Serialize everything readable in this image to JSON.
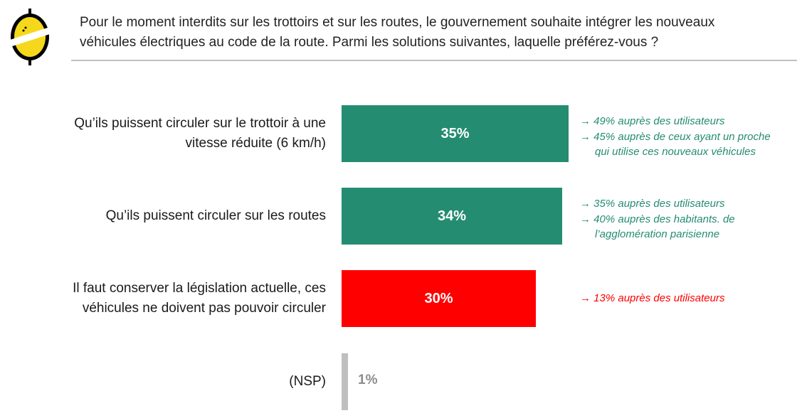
{
  "header": {
    "question_line1": "Pour le moment interdits sur les trottoirs et sur les routes, le gouvernement souhaite intégrer les nouveaux",
    "question_line2": "véhicules électriques au code de la route. Parmi les solutions suivantes, laquelle préférez-vous ?"
  },
  "colors": {
    "green": "#248c70",
    "red": "#ff0000",
    "gray": "#bfbfbf",
    "gray_text": "#8c8c8c",
    "logo_yellow": "#f5d81b"
  },
  "chart_data": {
    "type": "bar",
    "orientation": "horizontal",
    "title": "",
    "categories": [
      "Qu’ils puissent circuler sur le trottoir à une vitesse réduite (6 km/h)",
      "Qu’ils puissent circuler sur les routes",
      "Il faut conserver la législation actuelle, ces véhicules ne doivent pas pouvoir circuler",
      "(NSP)"
    ],
    "values": [
      35,
      34,
      30,
      1
    ],
    "value_labels": [
      "35%",
      "34%",
      "30%",
      "1%"
    ],
    "bar_colors": [
      "#248c70",
      "#248c70",
      "#ff0000",
      "#bfbfbf"
    ],
    "label_lines": [
      [
        "Qu’ils puissent circuler sur le trottoir à une",
        "vitesse réduite (6 km/h)"
      ],
      [
        "Qu’ils puissent circuler sur les routes"
      ],
      [
        "Il faut conserver la législation actuelle, ces",
        "véhicules ne doivent pas pouvoir circuler"
      ],
      [
        "(NSP)"
      ]
    ],
    "notes": [
      {
        "color": "#248c70",
        "lines": [
          "→ 49% auprès des utilisateurs",
          "→ 45% auprès de ceux ayant un proche",
          "qui utilise ces nouveaux véhicules"
        ]
      },
      {
        "color": "#248c70",
        "lines": [
          "→ 35% auprès des utilisateurs",
          "→ 40% auprès des habitants. de",
          "l’agglomération parisienne"
        ]
      },
      {
        "color": "#ff0000",
        "lines": [
          "→ 13% auprès des utilisateurs"
        ]
      }
    ],
    "xlim": [
      0,
      35
    ]
  }
}
